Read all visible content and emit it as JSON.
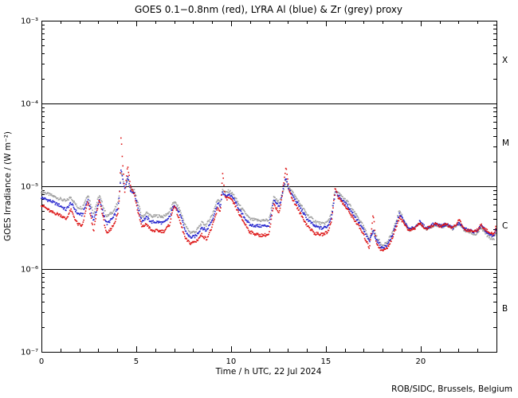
{
  "page": {
    "background": "#ffffff",
    "frame_color": "#000000"
  },
  "credit": "ROB/SIDC, Brussels, Belgium",
  "chart_data": {
    "type": "scatter",
    "title": "GOES 0.1−0.8nm (red), LYRA Al (blue) & Zr (grey) proxy",
    "xlabel": "Time / h UTC, 22 Jul 2024",
    "ylabel": "GOES Irradiance / (W m⁻²)",
    "date_shown": "22 Jul 2024",
    "x_range_hours": [
      0,
      24
    ],
    "x_major_ticks": [
      {
        "t": 0,
        "label": "0"
      },
      {
        "t": 5,
        "label": "5"
      },
      {
        "t": 10,
        "label": "10"
      },
      {
        "t": 15,
        "label": "15"
      },
      {
        "t": 20,
        "label": "20"
      }
    ],
    "x_minor_step_hours": 1,
    "y_scale": "log",
    "ylim": [
      1e-07,
      0.001
    ],
    "y_ticks": [
      {
        "exp": -3,
        "label": "10⁻³"
      },
      {
        "exp": -4,
        "label": "10⁻⁴"
      },
      {
        "exp": -5,
        "label": "10⁻⁵"
      },
      {
        "exp": -6,
        "label": "10⁻⁶"
      },
      {
        "exp": -7,
        "label": "10⁻⁷"
      }
    ],
    "grid": "off",
    "flare_class_lines_exp": [
      -4,
      -5,
      -6
    ],
    "flare_class_labels": [
      {
        "label": "X",
        "band_exp": [
          -4,
          -3
        ]
      },
      {
        "label": "M",
        "band_exp": [
          -5,
          -4
        ]
      },
      {
        "label": "C",
        "band_exp": [
          -6,
          -5
        ]
      },
      {
        "label": "B",
        "band_exp": [
          -7,
          -6
        ]
      }
    ],
    "legend_note": "colors encoded in title: red = GOES 0.1-0.8nm, blue = LYRA Al proxy, grey = LYRA Zr proxy",
    "unit": "W m^-2",
    "value_scale": 1e-06,
    "dot_cadence_hours": 0.0333,
    "jitter_log10": 0.035,
    "t_hours": [
      0,
      0.5,
      1.0,
      1.3,
      1.55,
      1.9,
      2.15,
      2.45,
      2.75,
      3.05,
      3.45,
      3.8,
      4.05,
      4.15,
      4.2,
      4.28,
      4.4,
      4.55,
      4.7,
      4.9,
      5.1,
      5.3,
      5.55,
      5.8,
      6.1,
      6.45,
      6.75,
      7.0,
      7.3,
      7.6,
      7.85,
      8.15,
      8.45,
      8.7,
      9.0,
      9.3,
      9.45,
      9.55,
      9.7,
      9.9,
      10.15,
      10.5,
      11.0,
      11.5,
      12.0,
      12.25,
      12.55,
      12.9,
      13.05,
      13.2,
      13.65,
      14.0,
      14.4,
      14.8,
      15.1,
      15.3,
      15.5,
      15.65,
      15.9,
      16.2,
      16.45,
      16.7,
      17.0,
      17.3,
      17.5,
      17.65,
      17.95,
      18.25,
      18.55,
      18.9,
      19.1,
      19.4,
      19.7,
      19.95,
      20.3,
      20.75,
      21.1,
      21.35,
      21.7,
      22.05,
      22.3,
      22.9,
      23.2,
      23.6,
      23.85,
      24.0
    ],
    "series": [
      {
        "name": "LYRA Zr proxy",
        "color_word": "grey",
        "color": "#a2a2a2",
        "values": [
          8.7,
          7.8,
          7.0,
          6.6,
          7.4,
          5.6,
          5.5,
          8.0,
          4.7,
          7.8,
          4.3,
          5.0,
          6.4,
          10,
          15,
          13,
          9.5,
          12.5,
          9.0,
          8.8,
          6.2,
          4.2,
          4.8,
          4.3,
          4.4,
          4.3,
          4.9,
          6.6,
          5.2,
          3.3,
          2.75,
          2.85,
          3.6,
          3.4,
          4.5,
          7.0,
          6.6,
          9.3,
          8.3,
          8.8,
          7.8,
          5.6,
          4.0,
          3.85,
          3.9,
          7.3,
          6.3,
          11.5,
          10,
          8.8,
          6.1,
          4.6,
          3.8,
          3.5,
          3.7,
          4.8,
          9.0,
          8.3,
          7.3,
          6.3,
          5.0,
          4.2,
          3.2,
          2.3,
          3.0,
          2.5,
          1.95,
          2.1,
          2.9,
          5.2,
          3.9,
          2.95,
          3.1,
          3.6,
          3.0,
          3.45,
          3.2,
          3.4,
          3.05,
          3.5,
          2.95,
          2.6,
          3.1,
          2.4,
          2.3,
          2.7
        ]
      },
      {
        "name": "LYRA Al proxy",
        "color_word": "blue",
        "color": "#2222cc",
        "values": [
          7.3,
          6.6,
          5.8,
          5.2,
          6.3,
          4.7,
          4.5,
          7.0,
          3.8,
          6.8,
          3.5,
          4.2,
          5.6,
          9.5,
          16,
          13,
          9.0,
          13.5,
          9.0,
          8.3,
          5.5,
          3.8,
          4.2,
          3.7,
          3.7,
          3.6,
          4.2,
          6.1,
          4.6,
          2.85,
          2.4,
          2.5,
          3.2,
          2.9,
          3.9,
          6.2,
          5.8,
          8.5,
          7.6,
          8.0,
          7.0,
          4.9,
          3.4,
          3.3,
          3.35,
          6.7,
          5.6,
          13,
          9.0,
          8.0,
          5.5,
          4.05,
          3.3,
          3.1,
          3.3,
          4.3,
          8.5,
          7.8,
          6.7,
          5.6,
          4.6,
          3.8,
          2.9,
          2.15,
          2.9,
          2.3,
          1.8,
          1.95,
          2.7,
          4.7,
          3.8,
          3.0,
          3.2,
          3.7,
          3.1,
          3.55,
          3.3,
          3.5,
          3.15,
          3.6,
          3.05,
          2.8,
          3.3,
          2.6,
          2.5,
          3.05
        ]
      },
      {
        "name": "GOES 0.1-0.8nm",
        "color_word": "red",
        "color": "#dd1515",
        "values": [
          6.0,
          4.9,
          4.5,
          4.0,
          5.2,
          3.5,
          3.3,
          6.5,
          2.9,
          7.0,
          2.6,
          3.4,
          4.8,
          10,
          43,
          20,
          8.5,
          18,
          10,
          8.0,
          4.8,
          3.2,
          3.5,
          2.9,
          2.9,
          2.85,
          3.4,
          6.0,
          3.8,
          2.3,
          2.05,
          2.15,
          2.6,
          2.3,
          3.2,
          5.4,
          5.0,
          15,
          7.0,
          7.3,
          6.2,
          4.3,
          2.8,
          2.55,
          2.6,
          6.0,
          4.8,
          17,
          9.5,
          7.3,
          4.7,
          3.4,
          2.7,
          2.6,
          2.8,
          3.8,
          9.7,
          7.4,
          6.2,
          5.0,
          4.1,
          3.4,
          2.55,
          1.8,
          4.7,
          2.1,
          1.65,
          1.8,
          2.5,
          4.3,
          3.6,
          2.9,
          3.1,
          3.6,
          3.0,
          3.5,
          3.25,
          3.5,
          3.1,
          3.9,
          3.0,
          2.85,
          3.4,
          2.75,
          2.6,
          3.2
        ]
      }
    ]
  }
}
